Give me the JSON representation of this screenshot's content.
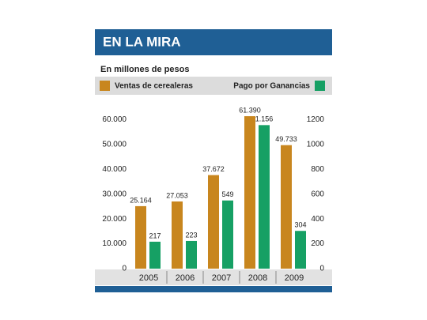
{
  "chart_data": {
    "type": "bar",
    "title": "EN LA MIRA",
    "subtitle": "En millones de pesos",
    "categories": [
      "2005",
      "2006",
      "2007",
      "2008",
      "2009"
    ],
    "series": [
      {
        "name": "Ventas de cerealeras",
        "color": "#c8861e",
        "values": [
          25164,
          27053,
          37672,
          61390,
          49733
        ],
        "value_labels": [
          "25.164",
          "27.053",
          "37.672",
          "61.390",
          "49.733"
        ]
      },
      {
        "name": "Pago por Ganancias",
        "color": "#16a064",
        "axis": "y2",
        "values": [
          217,
          223,
          549,
          1156,
          304
        ],
        "value_labels": [
          "217",
          "223",
          "549",
          "1.156",
          "304"
        ]
      }
    ],
    "ylim": [
      0,
      63000
    ],
    "yticks": [
      0,
      {
        "value": 10000,
        "label": "10.000"
      },
      {
        "value": 20000,
        "label": "20.000"
      },
      {
        "value": 30000,
        "label": "30.000"
      },
      {
        "value": 40000,
        "label": "40.000"
      },
      {
        "value": 50000,
        "label": "50.000"
      },
      {
        "value": 60000,
        "label": "60.000"
      }
    ],
    "y2lim": [
      0,
      1260
    ],
    "y2ticks": [
      0,
      200,
      400,
      600,
      800,
      1000,
      1200
    ],
    "grid": false
  }
}
